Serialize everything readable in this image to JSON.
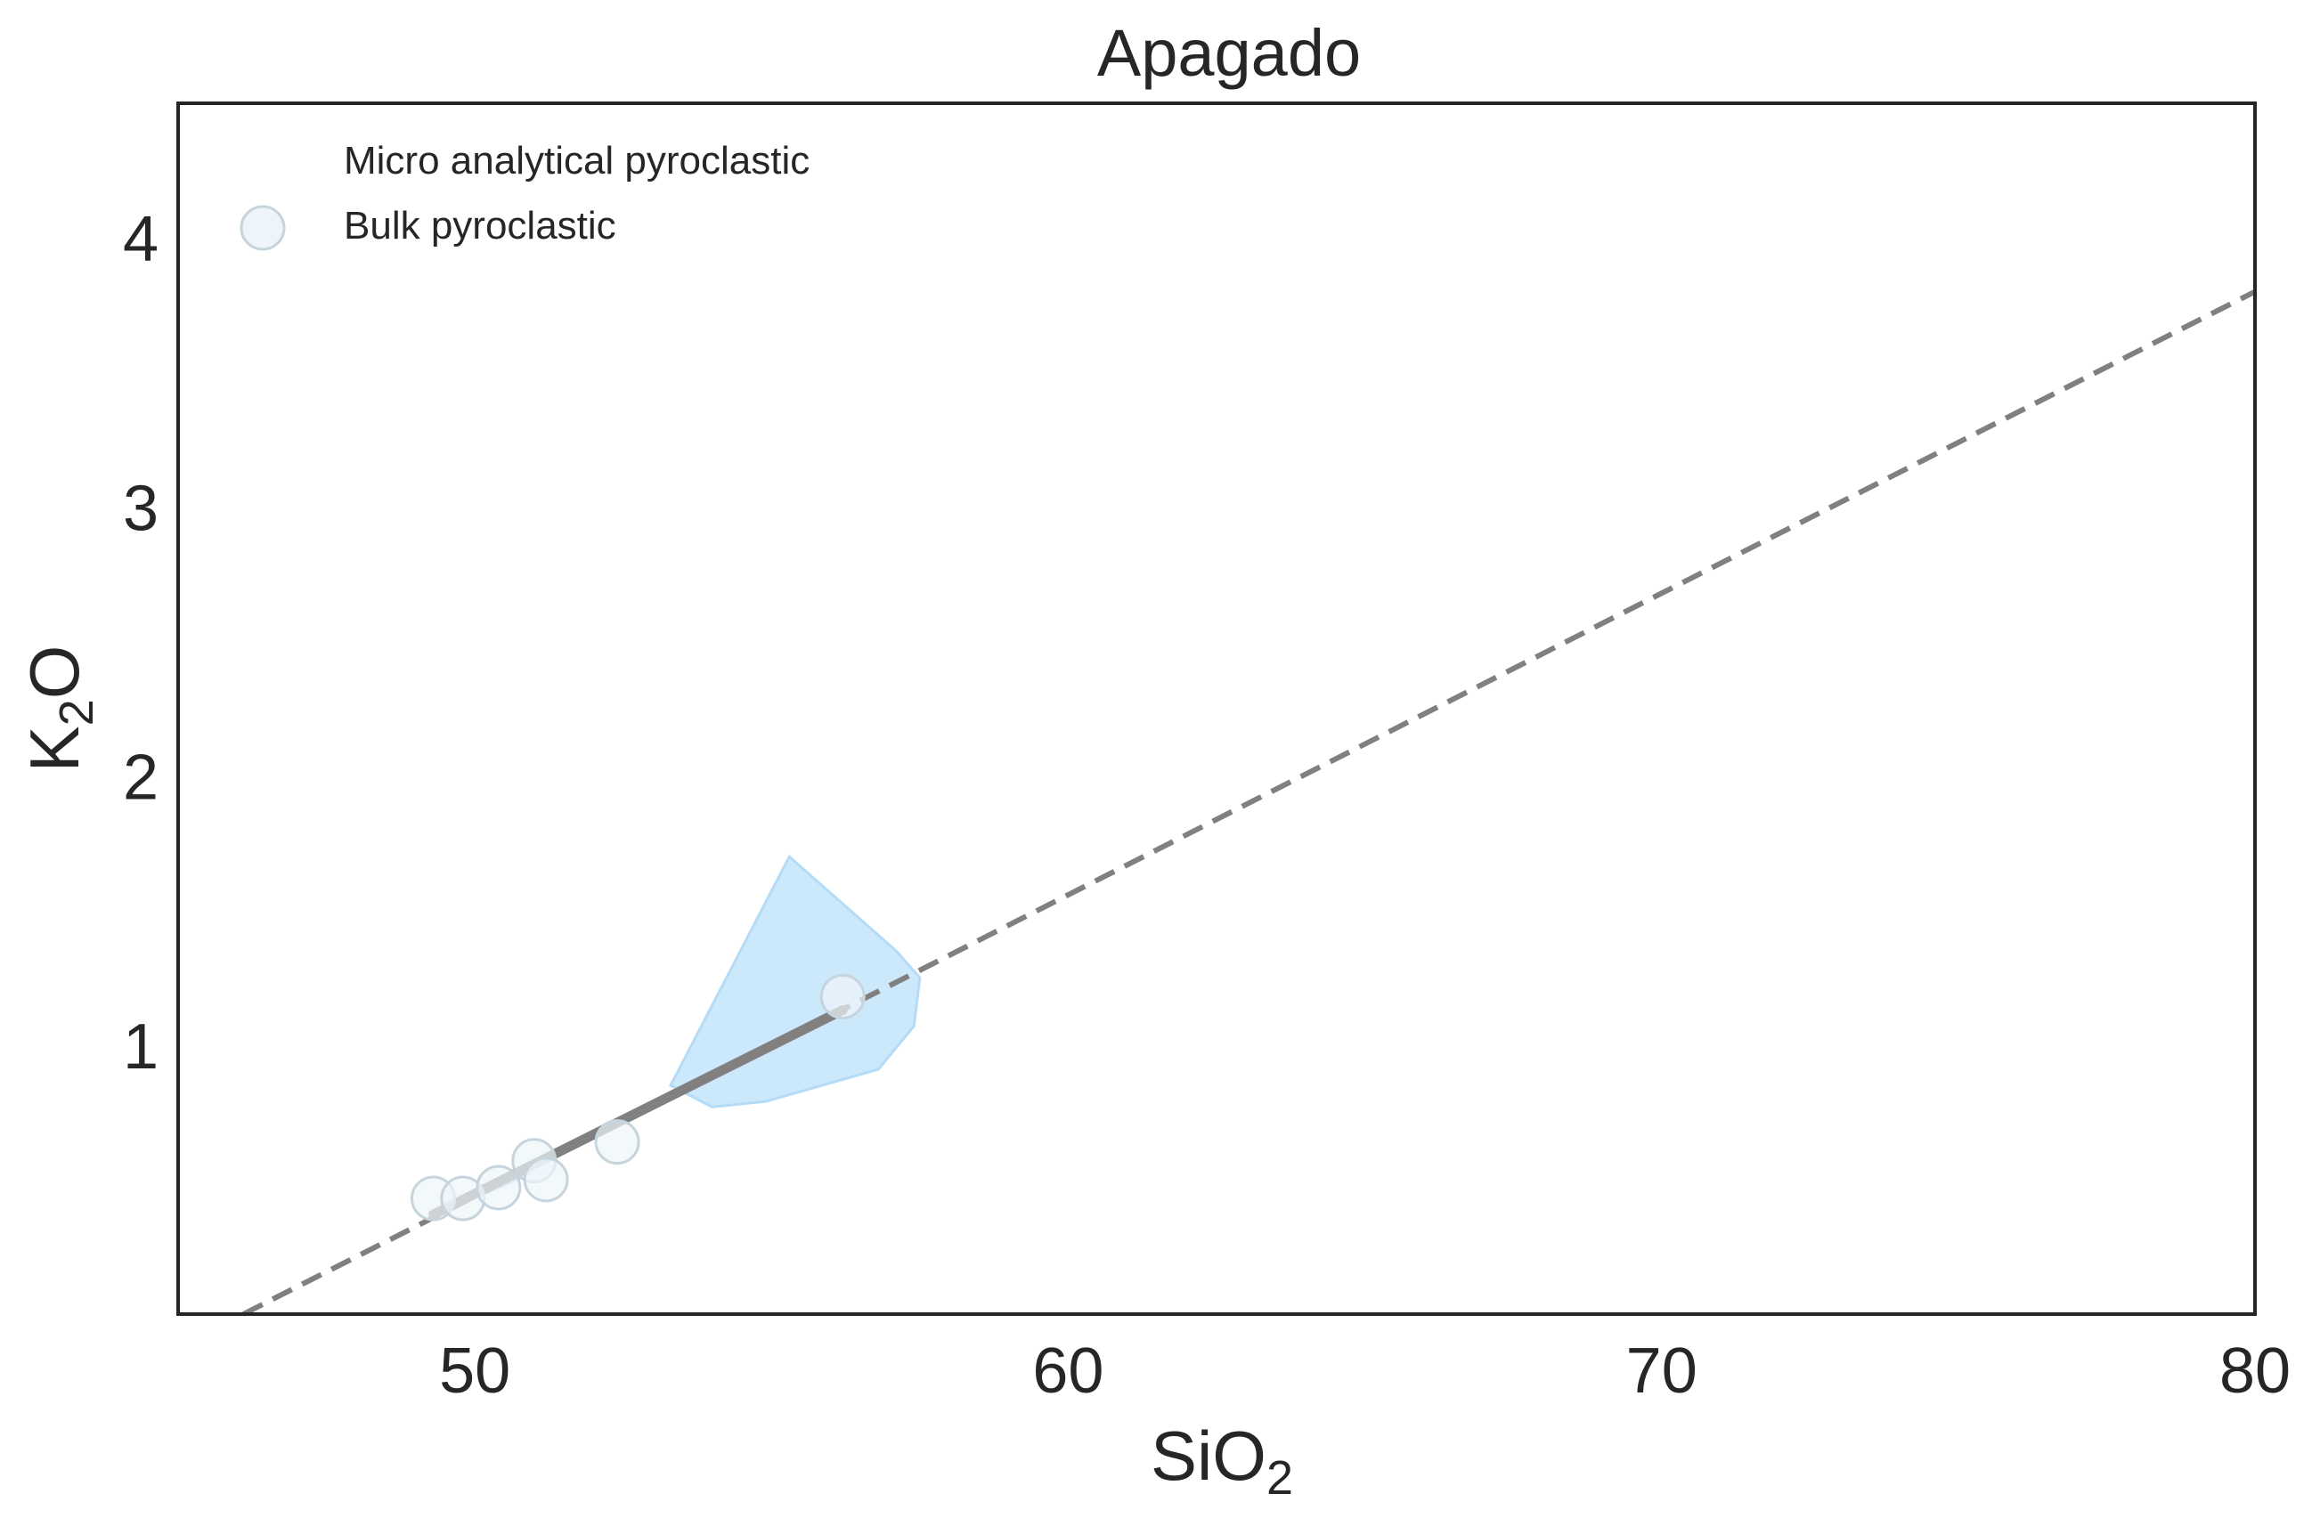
{
  "chart_data": {
    "type": "scatter",
    "title": "Apagado",
    "xlabel": {
      "base": "SiO",
      "sub": "2"
    },
    "ylabel": {
      "base": "K",
      "sub": "2",
      "tail": "O"
    },
    "xlim": [
      45,
      80
    ],
    "ylim": [
      0,
      4.5
    ],
    "x_ticks": [
      50,
      60,
      70,
      80
    ],
    "y_ticks": [
      1,
      2,
      3,
      4
    ],
    "grid": false,
    "legend_placement": "top-left",
    "legend": [
      {
        "label": "Micro analytical pyroclastic",
        "marker": "none"
      },
      {
        "label": "Bulk pyroclastic",
        "marker": "circle"
      }
    ],
    "series": [
      {
        "name": "Micro analytical pyroclastic",
        "kind": "filled-area",
        "color": "#cce8fb",
        "edge_color": "#b4dcf6",
        "polygon": [
          [
            53.3,
            0.85
          ],
          [
            55.3,
            1.7
          ],
          [
            57.1,
            1.35
          ],
          [
            57.5,
            1.25
          ],
          [
            57.4,
            1.07
          ],
          [
            56.8,
            0.91
          ],
          [
            54.9,
            0.79
          ],
          [
            54.0,
            0.77
          ]
        ]
      },
      {
        "name": "Micro analytical pyroclastic (small area)",
        "kind": "filled-area",
        "color": "#cce8fb",
        "edge_color": "#b4dcf6",
        "polygon": [
          [
            50.2,
            0.45
          ],
          [
            50.9,
            0.52
          ],
          [
            51.0,
            0.56
          ],
          [
            50.4,
            0.5
          ]
        ]
      },
      {
        "name": "Bulk pyroclastic",
        "kind": "scatter",
        "color": "#eef5fa",
        "edge_color": "#c6d4de",
        "x": [
          49.3,
          49.8,
          50.4,
          51.0,
          51.2,
          52.4,
          56.2
        ],
        "y": [
          0.43,
          0.43,
          0.47,
          0.57,
          0.5,
          0.64,
          1.18
        ]
      },
      {
        "name": "Trend fit",
        "kind": "line",
        "color": "#808080",
        "x": [
          49.3,
          56.2
        ],
        "y": [
          0.37,
          1.13
        ]
      },
      {
        "name": "Trend extrapolation",
        "kind": "dashed-line",
        "color": "#808080",
        "x": [
          46.1,
          80
        ],
        "y": [
          0.0,
          3.8
        ]
      }
    ]
  }
}
